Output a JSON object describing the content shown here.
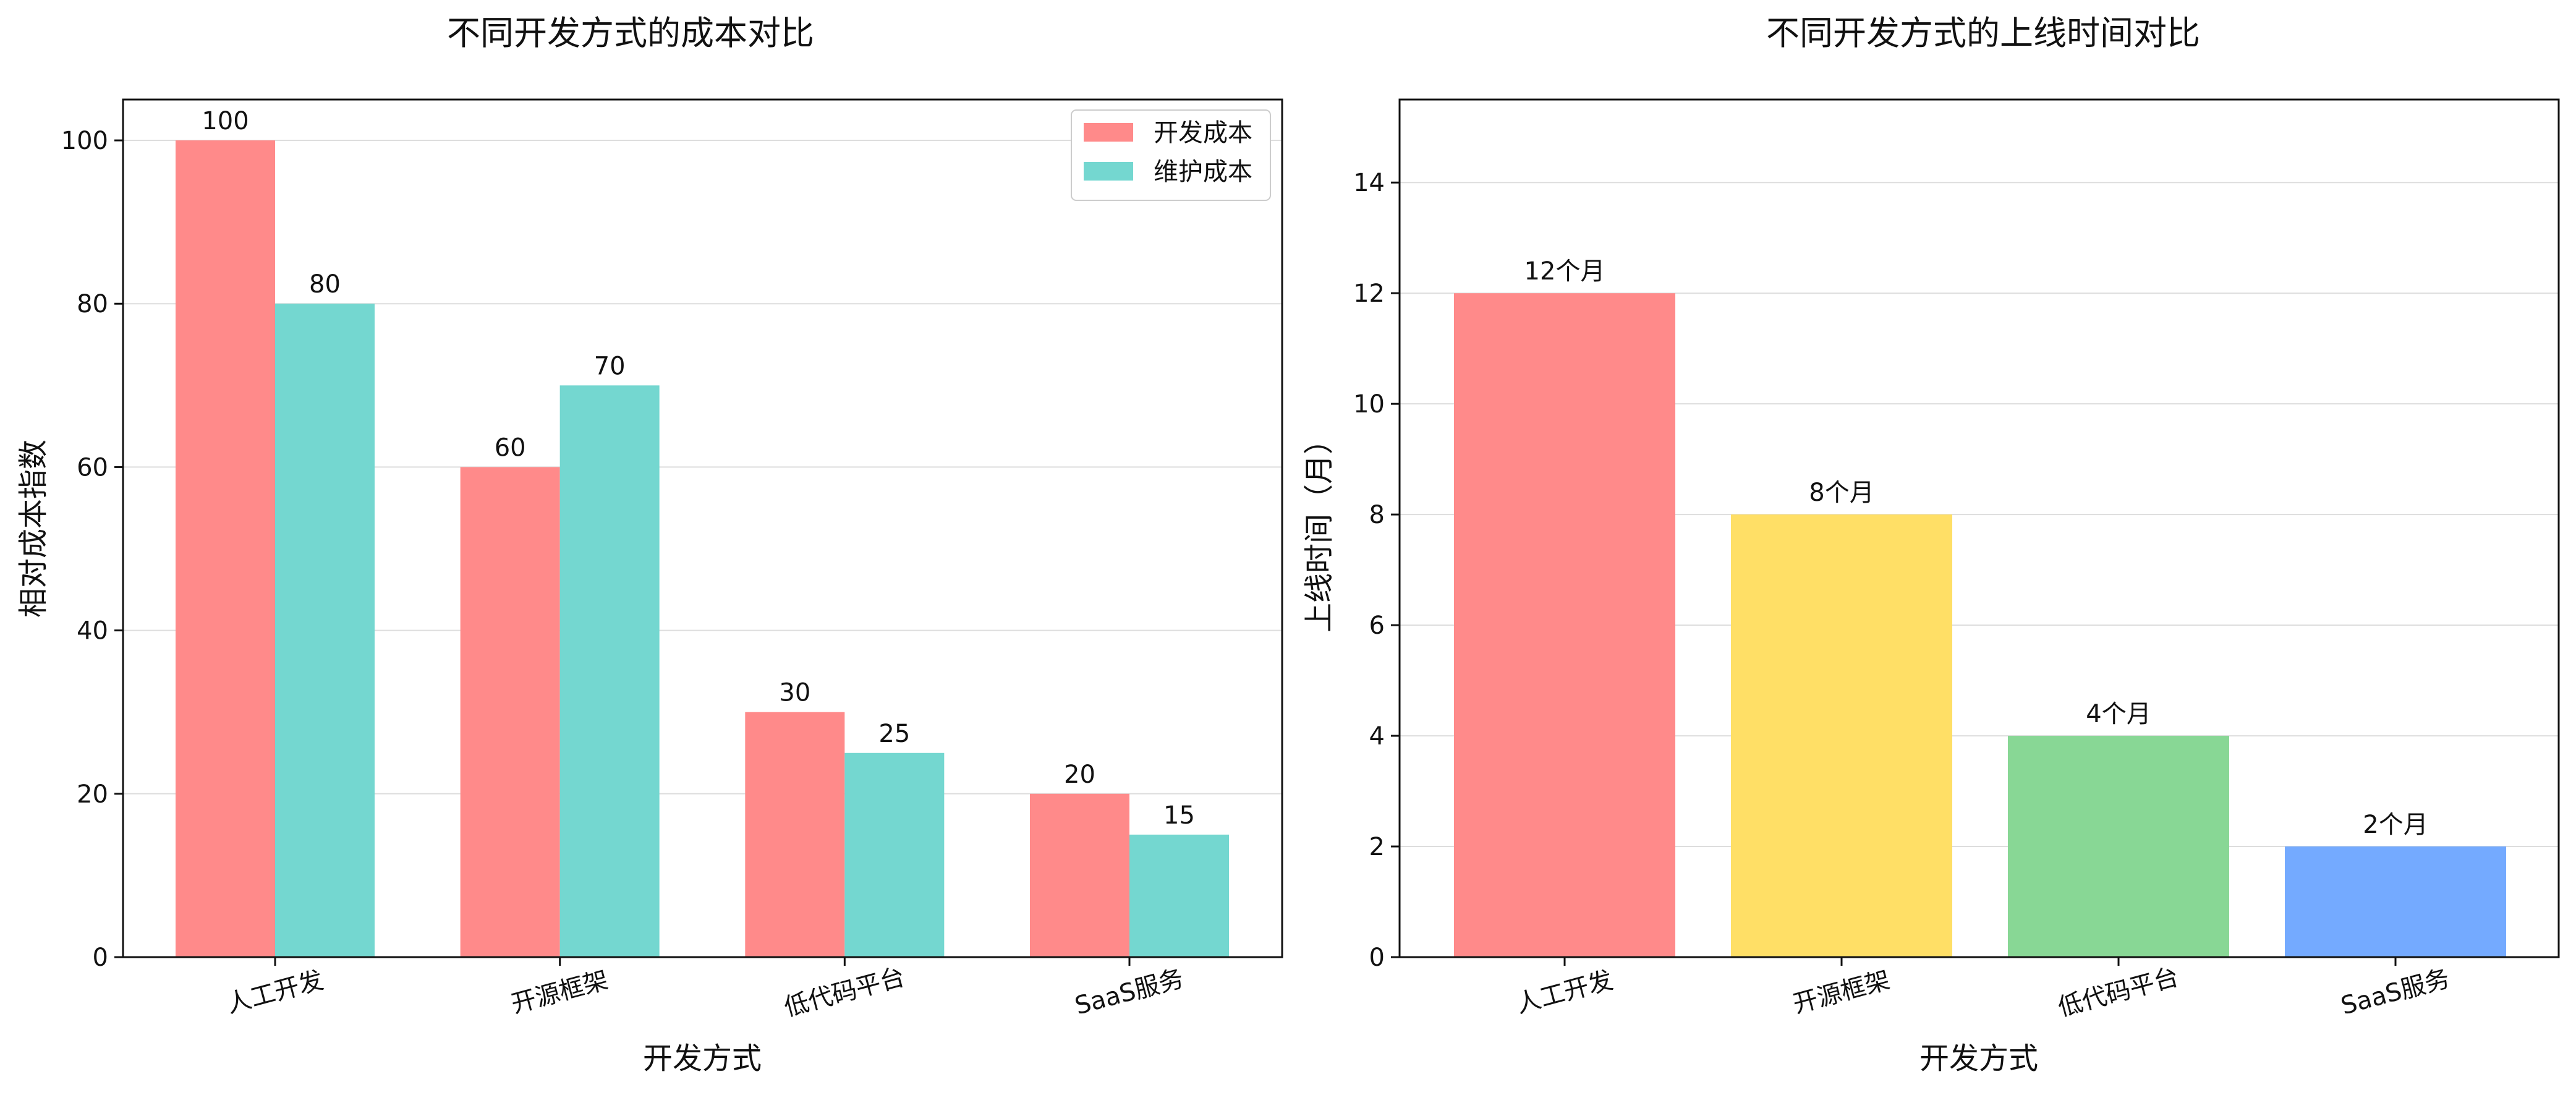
{
  "chart_data": [
    {
      "type": "bar",
      "title": "不同开发方式的成本对比",
      "xlabel": "开发方式",
      "ylabel": "相对成本指数",
      "categories": [
        "人工开发",
        "开源框架",
        "低代码平台",
        "SaaS服务"
      ],
      "series": [
        {
          "name": "开发成本",
          "values": [
            100,
            60,
            30,
            20
          ],
          "color": "#FF8A8A"
        },
        {
          "name": "维护成本",
          "values": [
            80,
            70,
            25,
            15
          ],
          "color": "#74D7D0"
        }
      ],
      "data_labels": [
        [
          "100",
          "60",
          "30",
          "20"
        ],
        [
          "80",
          "70",
          "25",
          "15"
        ]
      ],
      "ylim": [
        0,
        105
      ],
      "yticks": [
        0,
        20,
        40,
        60,
        80,
        100
      ],
      "grid": true,
      "legend": "top-right"
    },
    {
      "type": "bar",
      "title": "不同开发方式的上线时间对比",
      "xlabel": "开发方式",
      "ylabel": "上线时间（月）",
      "categories": [
        "人工开发",
        "开源框架",
        "低代码平台",
        "SaaS服务"
      ],
      "values": [
        12,
        8,
        4,
        2
      ],
      "data_labels": [
        "12个月",
        "8个月",
        "4个月",
        "2个月"
      ],
      "colors": [
        "#FF8A8A",
        "#FFDF66",
        "#88D795",
        "#74AAFF"
      ],
      "ylim": [
        0,
        15.5
      ],
      "yticks": [
        0,
        2,
        4,
        6,
        8,
        10,
        12,
        14
      ],
      "grid": true
    }
  ]
}
